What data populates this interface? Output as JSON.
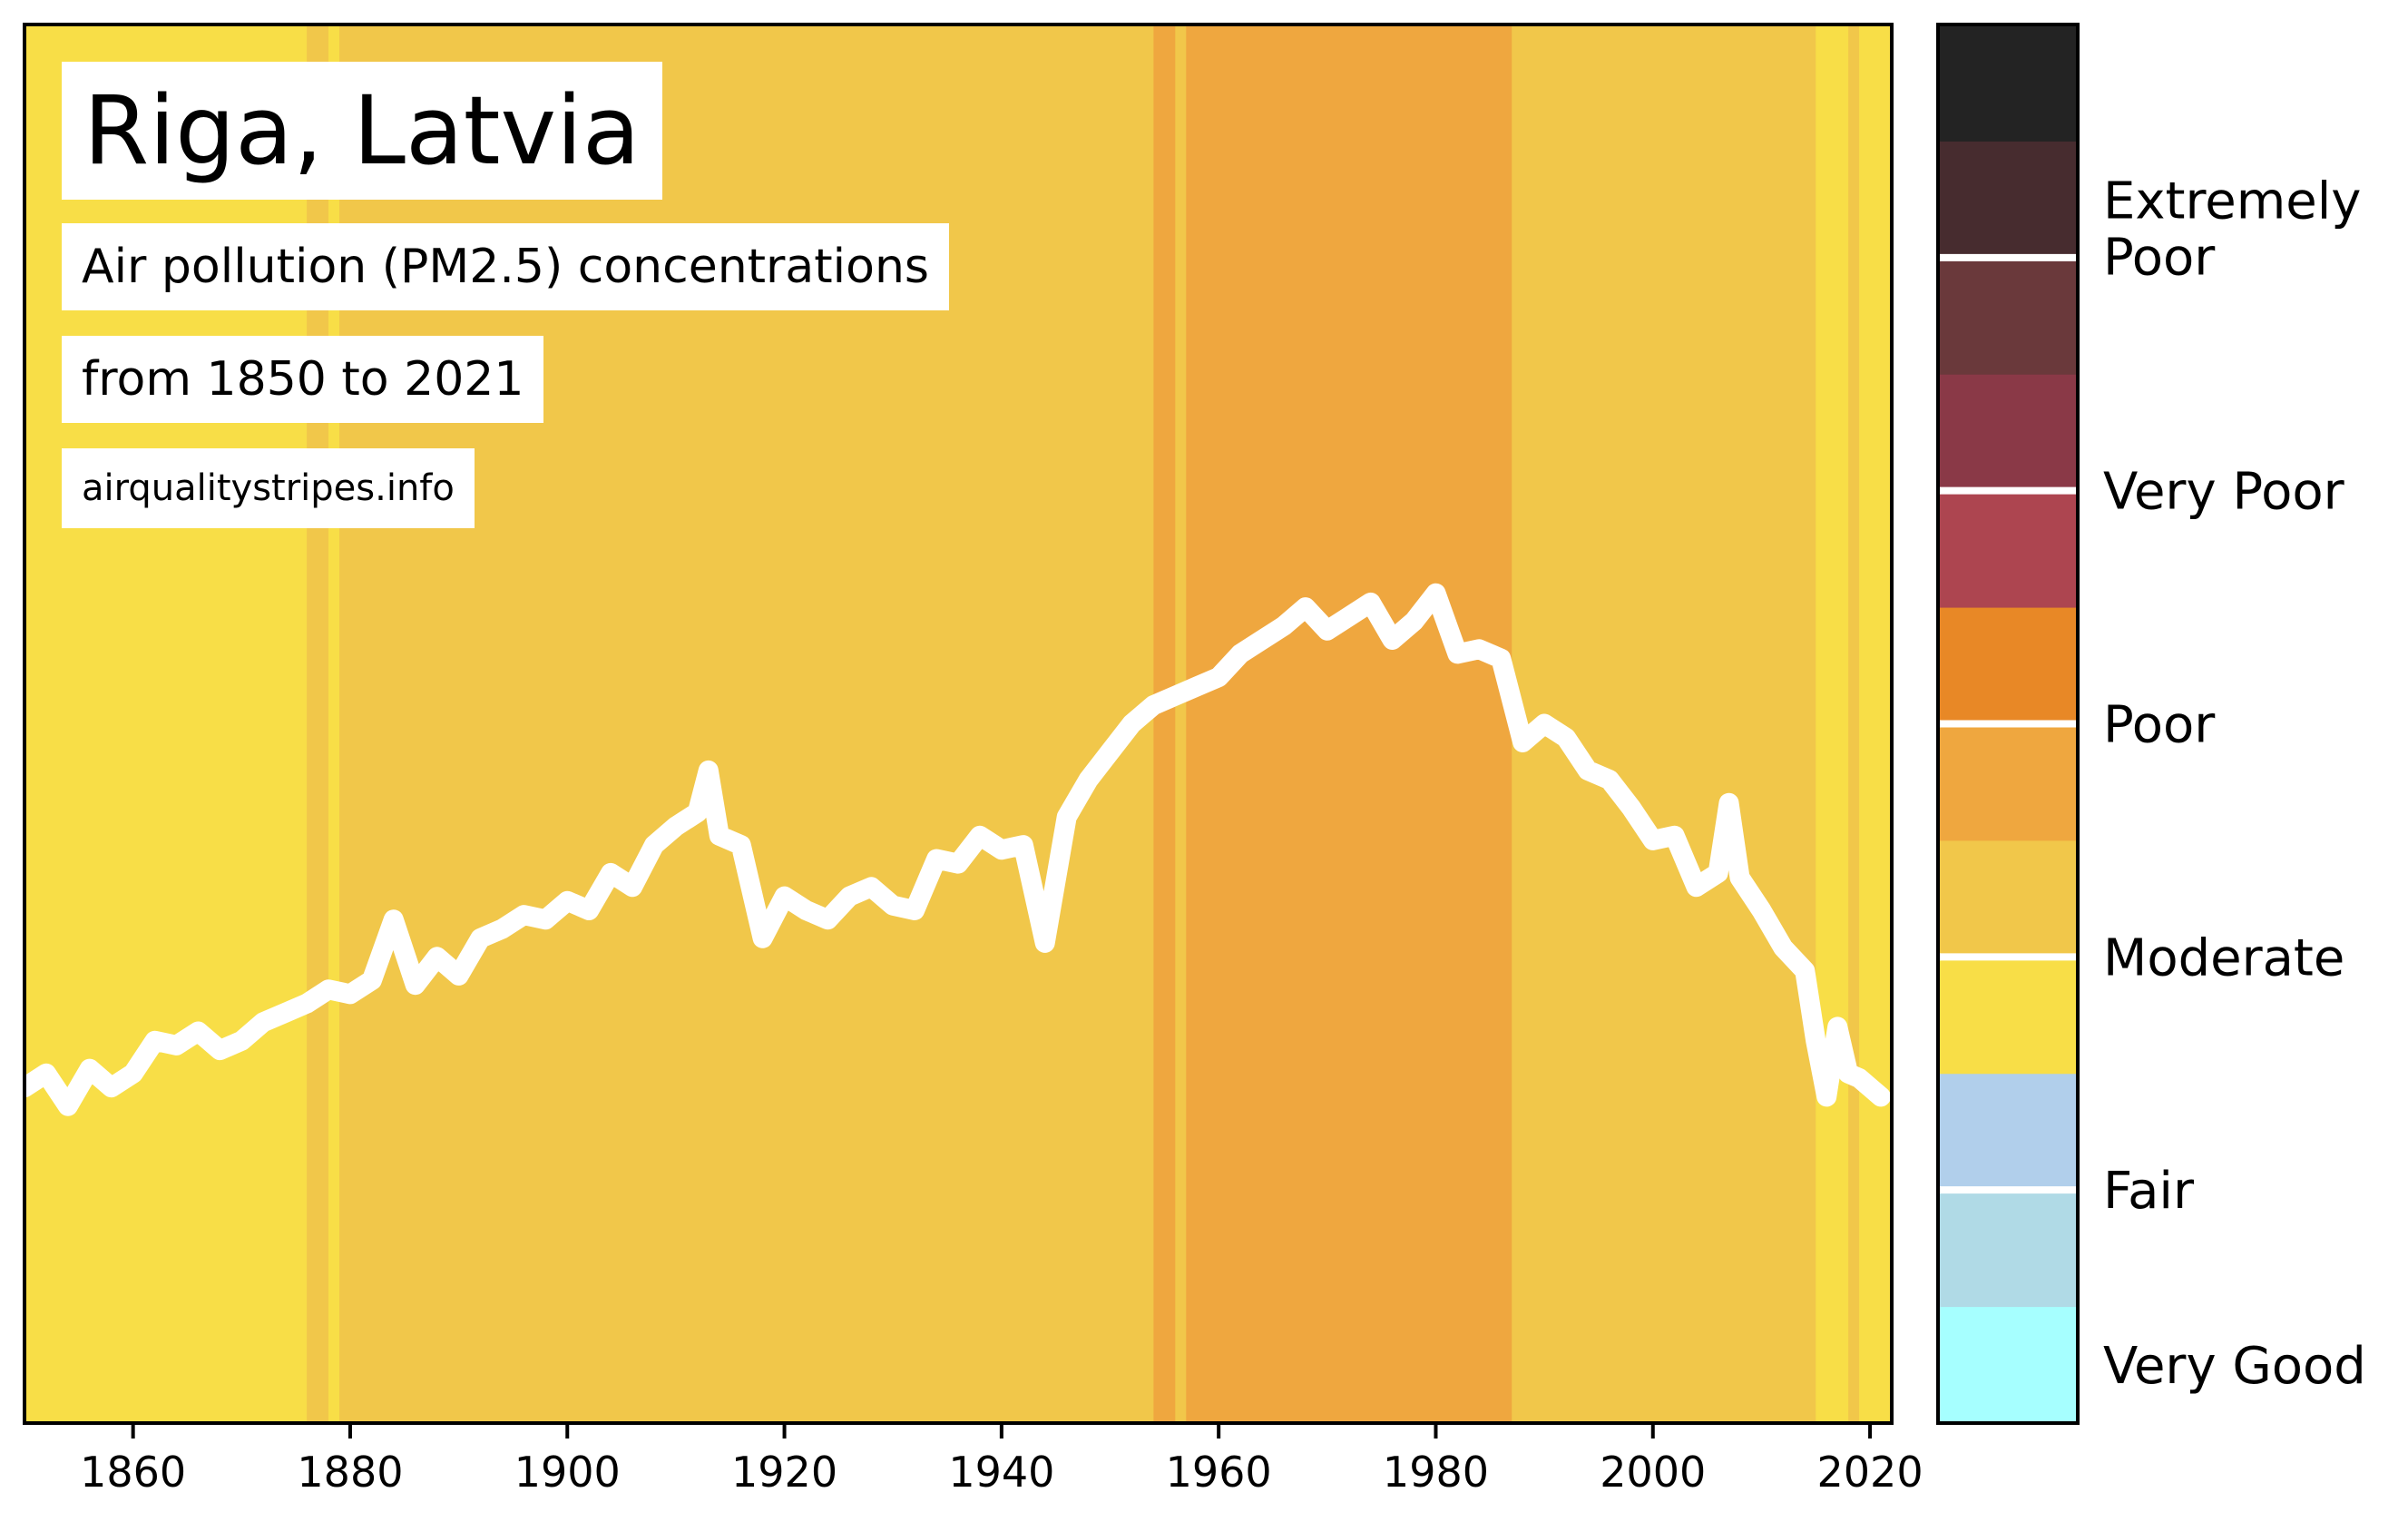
{
  "title": "Riga, Latvia",
  "subtitle_1": "Air pollution (PM2.5) concentrations",
  "subtitle_2": "from 1850 to 2021",
  "source": "airqualitystripes.info",
  "chart_data": {
    "type": "stripes",
    "title": "Riga, Latvia",
    "x_range": [
      1850,
      2022
    ],
    "x_ticks": [
      1860,
      1880,
      1900,
      1920,
      1940,
      1960,
      1980,
      2000,
      2020
    ],
    "grid": false,
    "line_color": "#ffffff",
    "stripe_categories": [
      {
        "from": 1850,
        "to": 1876,
        "class": "Moderate (lower)"
      },
      {
        "from": 1876,
        "to": 1878,
        "class": "Moderate (upper)"
      },
      {
        "from": 1878,
        "to": 1879,
        "class": "Moderate (lower)"
      },
      {
        "from": 1879,
        "to": 1954,
        "class": "Moderate (upper)"
      },
      {
        "from": 1954,
        "to": 1956,
        "class": "Poor (lower)"
      },
      {
        "from": 1956,
        "to": 1957,
        "class": "Moderate (upper)"
      },
      {
        "from": 1957,
        "to": 1987,
        "class": "Poor (lower)"
      },
      {
        "from": 1987,
        "to": 2015,
        "class": "Moderate (upper)"
      },
      {
        "from": 2015,
        "to": 2018,
        "class": "Moderate (lower)"
      },
      {
        "from": 2018,
        "to": 2019,
        "class": "Moderate (upper)"
      },
      {
        "from": 2019,
        "to": 2022,
        "class": "Moderate (lower)"
      }
    ],
    "pm25_trend": {
      "x": [
        1850,
        1852,
        1854,
        1856,
        1858,
        1860,
        1862,
        1864,
        1866,
        1868,
        1870,
        1872,
        1874,
        1876,
        1878,
        1880,
        1882,
        1884,
        1886,
        1888,
        1890,
        1892,
        1894,
        1896,
        1898,
        1900,
        1902,
        1904,
        1906,
        1908,
        1910,
        1912,
        1913,
        1914,
        1916,
        1918,
        1920,
        1922,
        1924,
        1926,
        1928,
        1930,
        1932,
        1934,
        1936,
        1938,
        1940,
        1942,
        1944,
        1946,
        1948,
        1950,
        1952,
        1954,
        1956,
        1958,
        1960,
        1962,
        1964,
        1966,
        1968,
        1970,
        1972,
        1974,
        1976,
        1978,
        1980,
        1982,
        1984,
        1986,
        1988,
        1990,
        1992,
        1994,
        1996,
        1998,
        2000,
        2002,
        2004,
        2006,
        2007,
        2008,
        2010,
        2012,
        2014,
        2015,
        2016,
        2017,
        2018,
        2019,
        2020,
        2021
      ],
      "values": [
        7.2,
        7.5,
        6.8,
        7.6,
        7.2,
        7.5,
        8.2,
        8.1,
        8.4,
        8.0,
        8.2,
        8.6,
        8.8,
        9.0,
        9.3,
        9.2,
        9.5,
        10.8,
        9.4,
        10.0,
        9.6,
        10.4,
        10.6,
        10.9,
        10.8,
        11.2,
        11.0,
        11.8,
        11.5,
        12.4,
        12.8,
        13.1,
        14.0,
        12.6,
        12.4,
        10.4,
        11.3,
        11.0,
        10.8,
        11.3,
        11.5,
        11.1,
        11.0,
        12.1,
        12.0,
        12.6,
        12.3,
        12.4,
        10.3,
        13.0,
        13.8,
        14.4,
        15.0,
        15.4,
        15.6,
        15.8,
        16.0,
        16.5,
        16.8,
        17.1,
        17.5,
        17.0,
        17.3,
        17.6,
        16.8,
        17.2,
        17.8,
        16.5,
        16.6,
        16.4,
        14.6,
        15.0,
        14.7,
        14.0,
        13.8,
        13.2,
        12.5,
        12.6,
        11.5,
        11.8,
        13.3,
        11.7,
        11.0,
        10.2,
        9.7,
        8.2,
        7.0,
        8.5,
        7.5,
        7.4,
        7.2,
        7.0
      ]
    }
  },
  "colorbar": {
    "segments": [
      {
        "color": "#a6ffff"
      },
      {
        "color": "#b0dae6"
      },
      {
        "color": "#b1cfeb"
      },
      {
        "color": "#f8de47"
      },
      {
        "color": "#f1c74a"
      },
      {
        "color": "#efa73f"
      },
      {
        "color": "#e88826"
      },
      {
        "color": "#ad4550"
      },
      {
        "color": "#8a3947"
      },
      {
        "color": "#6a393b"
      },
      {
        "color": "#472c2f"
      },
      {
        "color": "#232323"
      }
    ],
    "labels": [
      {
        "lines": [
          "Very Good"
        ]
      },
      {
        "lines": [
          "Fair"
        ]
      },
      {
        "lines": [
          "Moderate"
        ]
      },
      {
        "lines": [
          "Poor"
        ]
      },
      {
        "lines": [
          "Very Poor"
        ]
      },
      {
        "lines": [
          "Extremely",
          "Poor"
        ]
      }
    ]
  },
  "class_colors": {
    "Moderate (lower)": "#f8de47",
    "Moderate (upper)": "#f1c74a",
    "Poor (lower)": "#efa73f"
  }
}
